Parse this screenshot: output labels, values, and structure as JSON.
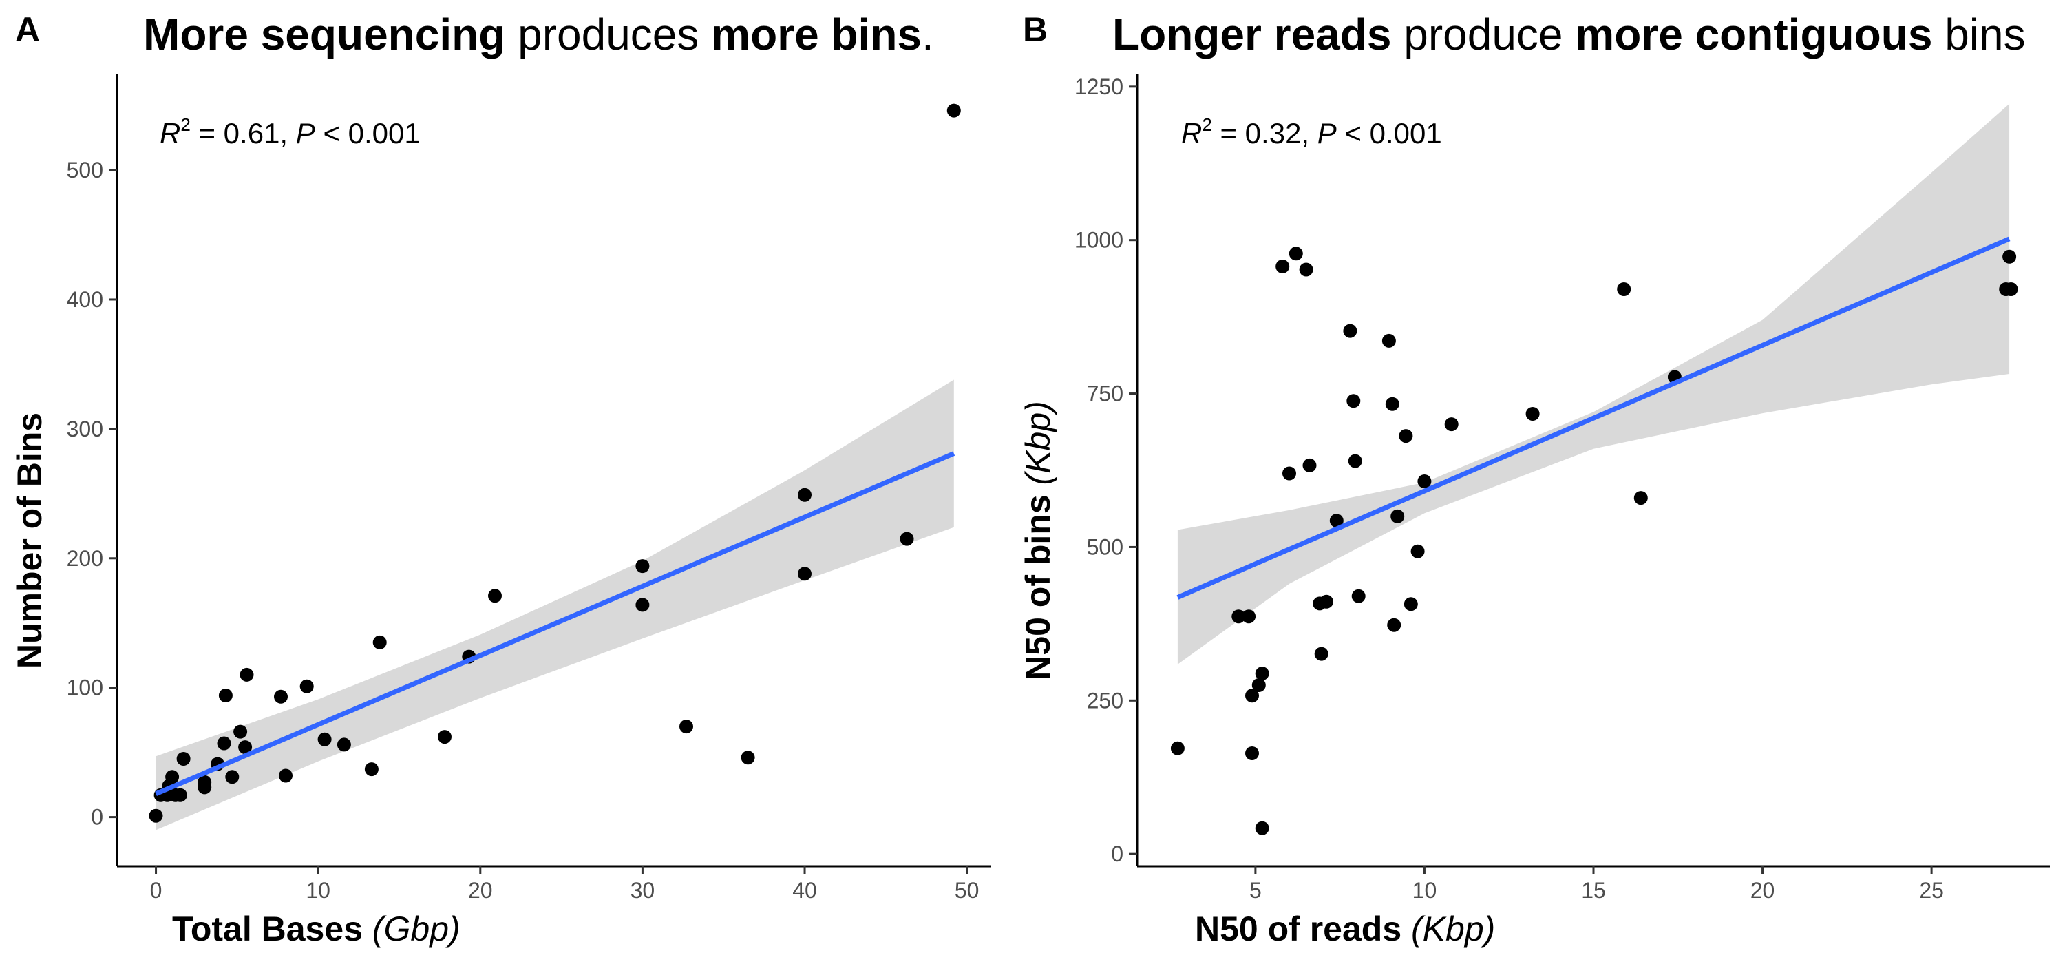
{
  "panels": [
    {
      "letter": "A",
      "title": {
        "p1": "More sequencing",
        "p2": " produces ",
        "p3": "more bins",
        "p4": "."
      },
      "xlabel": {
        "main": "Total Bases ",
        "unit": "(Gbp)"
      },
      "ylabel": "Number of Bins",
      "annotation": {
        "r": "R",
        "exp": "2",
        "rval": " = 0.61, ",
        "p": "P",
        "pval": " < 0.001"
      }
    },
    {
      "letter": "B",
      "title": {
        "p1": "Longer reads",
        "p2": " produce ",
        "p3": "more contiguous",
        "p4": " bins"
      },
      "xlabel": {
        "main": "N50 of reads ",
        "unit": "(Kbp)"
      },
      "ylabel": {
        "main": "N50 of bins ",
        "unit": "(Kbp)"
      },
      "annotation": {
        "r": "R",
        "exp": "2",
        "rval": " = 0.32, ",
        "p": "P",
        "pval": " < 0.001"
      }
    }
  ],
  "chart_data": [
    {
      "type": "scatter",
      "title": "More sequencing produces more bins.",
      "xlabel": "Total Bases (Gbp)",
      "ylabel": "Number of Bins",
      "xlim": [
        -2.4,
        51.5
      ],
      "ylim": [
        -38,
        574
      ],
      "xticks": [
        0,
        10,
        20,
        30,
        40,
        50
      ],
      "yticks": [
        0,
        100,
        200,
        300,
        400,
        500
      ],
      "grid": false,
      "colors": {
        "points": "#000000",
        "fit": "#3366ff",
        "band": "#d9d9d9"
      },
      "points": [
        [
          0,
          1
        ],
        [
          0.3,
          17
        ],
        [
          0.7,
          17
        ],
        [
          0.8,
          24
        ],
        [
          1,
          31
        ],
        [
          1.2,
          17
        ],
        [
          1.5,
          17
        ],
        [
          1.7,
          45
        ],
        [
          3,
          23
        ],
        [
          3,
          27
        ],
        [
          3.8,
          41
        ],
        [
          4.2,
          57
        ],
        [
          4.3,
          94
        ],
        [
          4.7,
          31
        ],
        [
          5.2,
          66
        ],
        [
          5.5,
          54
        ],
        [
          5.6,
          110
        ],
        [
          7.7,
          93
        ],
        [
          8,
          32
        ],
        [
          9.3,
          101
        ],
        [
          10.4,
          60
        ],
        [
          11.6,
          56
        ],
        [
          13.3,
          37
        ],
        [
          13.8,
          135
        ],
        [
          17.8,
          62
        ],
        [
          19.3,
          124
        ],
        [
          20.9,
          171
        ],
        [
          30,
          194
        ],
        [
          30,
          164
        ],
        [
          32.7,
          70
        ],
        [
          36.5,
          46
        ],
        [
          40,
          249
        ],
        [
          40,
          188
        ],
        [
          46.3,
          215
        ],
        [
          49.2,
          546
        ]
      ],
      "fit": {
        "x": [
          0,
          49.2
        ],
        "y": [
          18,
          281
        ]
      },
      "ci": {
        "x": [
          0,
          10,
          20,
          30,
          40,
          49.2
        ],
        "lower": [
          -10,
          43,
          92,
          138,
          183,
          224
        ],
        "upper": [
          47,
          91,
          141,
          198,
          268,
          338
        ]
      },
      "annotation": "R2 = 0.61, P < 0.001"
    },
    {
      "type": "scatter",
      "title": "Longer reads produce more contiguous bins",
      "xlabel": "N50 of reads (Kbp)",
      "ylabel": "N50 of bins (Kbp)",
      "xlim": [
        1.5,
        28.5
      ],
      "ylim": [
        -20,
        1270
      ],
      "xticks": [
        5,
        10,
        15,
        20,
        25
      ],
      "yticks": [
        0,
        250,
        500,
        750,
        1000,
        1250
      ],
      "grid": false,
      "colors": {
        "points": "#000000",
        "fit": "#3366ff",
        "band": "#d9d9d9"
      },
      "points": [
        [
          2.7,
          172
        ],
        [
          4.5,
          387
        ],
        [
          4.8,
          387
        ],
        [
          4.9,
          258
        ],
        [
          4.9,
          164
        ],
        [
          5.1,
          275
        ],
        [
          5.2,
          294
        ],
        [
          5.2,
          42
        ],
        [
          5.8,
          957
        ],
        [
          6,
          620
        ],
        [
          6.2,
          978
        ],
        [
          6.5,
          952
        ],
        [
          6.6,
          633
        ],
        [
          6.9,
          408
        ],
        [
          6.95,
          326
        ],
        [
          7.1,
          411
        ],
        [
          7.4,
          543
        ],
        [
          7.8,
          852
        ],
        [
          7.9,
          738
        ],
        [
          7.95,
          640
        ],
        [
          8.05,
          420
        ],
        [
          8.95,
          836
        ],
        [
          9.05,
          733
        ],
        [
          9.1,
          373
        ],
        [
          9.2,
          550
        ],
        [
          9.45,
          681
        ],
        [
          9.6,
          407
        ],
        [
          9.8,
          493
        ],
        [
          10,
          607
        ],
        [
          10.8,
          700
        ],
        [
          13.2,
          717
        ],
        [
          15.9,
          920
        ],
        [
          16.4,
          580
        ],
        [
          17.4,
          777
        ],
        [
          27.2,
          920
        ],
        [
          27.3,
          973
        ],
        [
          27.35,
          920
        ]
      ],
      "fit": {
        "x": [
          2.7,
          27.3
        ],
        "y": [
          418,
          1002
        ]
      },
      "ci": {
        "x": [
          2.7,
          6,
          10,
          15,
          20,
          25,
          27.3
        ],
        "lower": [
          309,
          440,
          555,
          660,
          718,
          765,
          782
        ],
        "upper": [
          528,
          560,
          605,
          720,
          870,
          1110,
          1222
        ]
      },
      "annotation": "R2 = 0.32, P < 0.001"
    }
  ]
}
